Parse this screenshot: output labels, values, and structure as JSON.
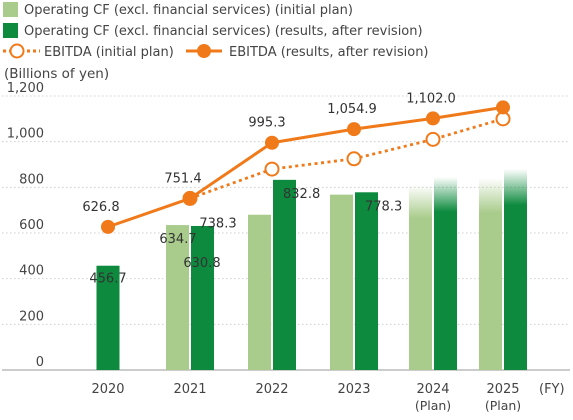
{
  "chart_data": {
    "type": "bar",
    "unit_label": "(Billions of yen)",
    "x_unit": "(FY)",
    "categories": [
      "2020",
      "2021",
      "2022",
      "2023",
      "2024",
      "2025"
    ],
    "category_sublabels": [
      "",
      "",
      "",
      "",
      "(Plan)",
      "(Plan)"
    ],
    "ylim": [
      0,
      1200
    ],
    "yticks": [
      0,
      200,
      400,
      600,
      800,
      1000,
      1200
    ],
    "ytick_labels": [
      "0",
      "200",
      "400",
      "600",
      "800",
      "1,000",
      "1,200"
    ],
    "grid": true,
    "legend": "top",
    "bar_series": [
      {
        "name": "Operating CF (excl. financial services) (initial plan)",
        "color": "#a9cc8c",
        "values": [
          null,
          634.7,
          680,
          768,
          810,
          840
        ],
        "labels": [
          "",
          "634.7",
          "",
          "",
          "",
          ""
        ]
      },
      {
        "name": "Operating CF (excl. financial services) (results, after revision)",
        "color": "#0d8a3e",
        "values": [
          456.7,
          630.8,
          832.8,
          778.3,
          845,
          880
        ],
        "labels": [
          "456.7",
          "630.8",
          "832.8",
          "778.3",
          "",
          ""
        ]
      }
    ],
    "line_series": [
      {
        "name": "EBITDA (initial plan)",
        "color": "#f07a1a",
        "style": "dotted",
        "marker": "hollow-circle",
        "values": [
          null,
          751.4,
          880,
          925,
          1010,
          1100
        ],
        "labels": [
          "",
          "",
          "",
          "",
          "",
          ""
        ]
      },
      {
        "name": "EBITDA (results, after revision)",
        "color": "#f07a1a",
        "style": "solid",
        "marker": "filled-circle",
        "values": [
          626.8,
          751.4,
          995.3,
          1054.9,
          1102.0,
          1150
        ],
        "labels": [
          "626.8",
          "751.4",
          "995.3",
          "1,054.9",
          "1,102.0",
          ""
        ]
      }
    ],
    "fade_categories": [
      "2024",
      "2025"
    ]
  }
}
